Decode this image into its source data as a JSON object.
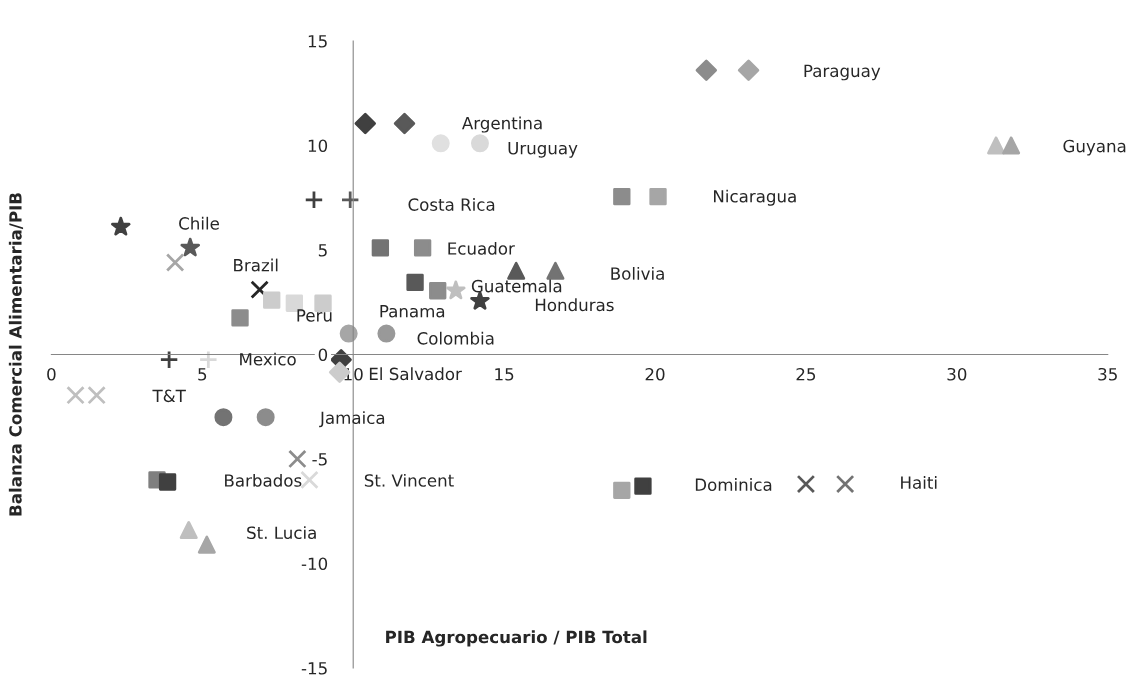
{
  "chart_data": {
    "type": "scatter",
    "xlabel": "PIB Agropecuario / PIB Total",
    "ylabel": "Balanza Comercial Alimentaria/PIB",
    "xlim": [
      0,
      35
    ],
    "xticks": [
      0,
      5,
      10,
      15,
      20,
      25,
      30,
      35
    ],
    "ylim": [
      -15,
      15
    ],
    "yticks": [
      -15,
      -10,
      -5,
      0,
      5,
      10,
      15
    ],
    "grid": false,
    "legend": false,
    "series": [
      {
        "marker": "diamond",
        "x": [
          10.4,
          11.7
        ],
        "values": [
          11.05,
          11.05
        ],
        "colors": [
          "#404040",
          "#595959"
        ]
      },
      {
        "marker": "circle",
        "x": [
          12.9,
          14.2
        ],
        "values": [
          10.1,
          10.1
        ],
        "colors": [
          "#e0e0e0",
          "#d9d9d9"
        ]
      },
      {
        "marker": "diamond",
        "x": [
          21.7,
          23.1
        ],
        "values": [
          13.6,
          13.6
        ],
        "colors": [
          "#8c8c8c",
          "#a6a6a6"
        ]
      },
      {
        "marker": "triangle",
        "x": [
          31.3,
          31.8
        ],
        "values": [
          10.0,
          10.0
        ],
        "colors": [
          "#bfbfbf",
          "#a6a6a6"
        ]
      },
      {
        "marker": "plus",
        "x": [
          8.7,
          9.9
        ],
        "values": [
          7.4,
          7.4
        ],
        "colors": [
          "#404040",
          "#595959"
        ]
      },
      {
        "marker": "square",
        "x": [
          18.9,
          20.1
        ],
        "values": [
          7.55,
          7.55
        ],
        "colors": [
          "#8c8c8c",
          "#a6a6a6"
        ]
      },
      {
        "marker": "star",
        "x": [
          2.3,
          4.6
        ],
        "values": [
          6.1,
          5.1
        ],
        "colors": [
          "#404040",
          "#595959"
        ]
      },
      {
        "marker": "cross",
        "x": [
          6.9,
          4.1
        ],
        "values": [
          3.1,
          4.4
        ],
        "colors": [
          "#262626",
          "#a6a6a6"
        ]
      },
      {
        "marker": "square",
        "x": [
          10.9,
          12.3
        ],
        "values": [
          5.1,
          5.1
        ],
        "colors": [
          "#737373",
          "#8c8c8c"
        ]
      },
      {
        "marker": "triangle",
        "x": [
          15.4,
          16.7
        ],
        "values": [
          4.0,
          4.0
        ],
        "colors": [
          "#595959",
          "#737373"
        ]
      },
      {
        "marker": "square",
        "x": [
          12.05,
          12.8
        ],
        "values": [
          3.45,
          3.05
        ],
        "colors": [
          "#595959",
          "#8c8c8c"
        ]
      },
      {
        "marker": "star",
        "x": [
          13.4,
          14.2
        ],
        "values": [
          3.05,
          2.55
        ],
        "colors": [
          "#bfbfbf",
          "#404040"
        ]
      },
      {
        "marker": "square",
        "x": [
          6.25,
          7.3
        ],
        "values": [
          1.75,
          2.6
        ],
        "colors": [
          "#8c8c8c",
          "#cccccc"
        ]
      },
      {
        "marker": "square",
        "x": [
          8.05,
          9.0
        ],
        "values": [
          2.45,
          2.45
        ],
        "colors": [
          "#d9d9d9",
          "#cccccc"
        ]
      },
      {
        "marker": "circle",
        "x": [
          9.85,
          11.1
        ],
        "values": [
          1.0,
          1.0
        ],
        "colors": [
          "#a6a6a6",
          "#999999"
        ]
      },
      {
        "marker": "diamond",
        "x": [
          9.6,
          9.55
        ],
        "values": [
          -0.25,
          -0.85
        ],
        "colors": [
          "#404040",
          "#cccccc"
        ]
      },
      {
        "marker": "plus",
        "x": [
          3.9,
          5.2
        ],
        "values": [
          -0.25,
          -0.25
        ],
        "colors": [
          "#404040",
          "#d9d9d9"
        ]
      },
      {
        "marker": "cross",
        "x": [
          0.8,
          1.5
        ],
        "values": [
          -1.95,
          -1.95
        ],
        "colors": [
          "#bfbfbf",
          "#bfbfbf"
        ]
      },
      {
        "marker": "circle",
        "x": [
          5.7,
          7.1
        ],
        "values": [
          -3.0,
          -3.0
        ],
        "colors": [
          "#737373",
          "#8c8c8c"
        ]
      },
      {
        "marker": "cross",
        "x": [
          8.15,
          8.55
        ],
        "values": [
          -5.0,
          -6.0
        ],
        "colors": [
          "#8c8c8c",
          "#d9d9d9"
        ]
      },
      {
        "marker": "square",
        "x": [
          3.5,
          3.85
        ],
        "values": [
          -6.0,
          -6.1
        ],
        "colors": [
          "#7f7f7f",
          "#404040"
        ]
      },
      {
        "marker": "triangle",
        "x": [
          4.55,
          5.15
        ],
        "values": [
          -8.4,
          -9.1
        ],
        "colors": [
          "#bfbfbf",
          "#a6a6a6"
        ]
      },
      {
        "marker": "square",
        "x": [
          18.9,
          19.6
        ],
        "values": [
          -6.5,
          -6.3
        ],
        "colors": [
          "#a6a6a6",
          "#404040"
        ]
      },
      {
        "marker": "cross",
        "x": [
          25.0,
          26.3
        ],
        "values": [
          -6.2,
          -6.2
        ],
        "colors": [
          "#595959",
          "#737373"
        ]
      }
    ],
    "annotations": [
      "Argentina",
      "Uruguay",
      "Paraguay",
      "Guyana",
      "Costa Rica",
      "Nicaragua",
      "Chile",
      "Brazil",
      "Ecuador",
      "Bolivia",
      "Guatemala",
      "Honduras",
      "Panama",
      "Peru",
      "Colombia",
      "Mexico",
      "El Salvador",
      "T&T",
      "Jamaica",
      "St. Vincent",
      "Barbados",
      "St. Lucia",
      "Dominica",
      "Haiti"
    ]
  }
}
